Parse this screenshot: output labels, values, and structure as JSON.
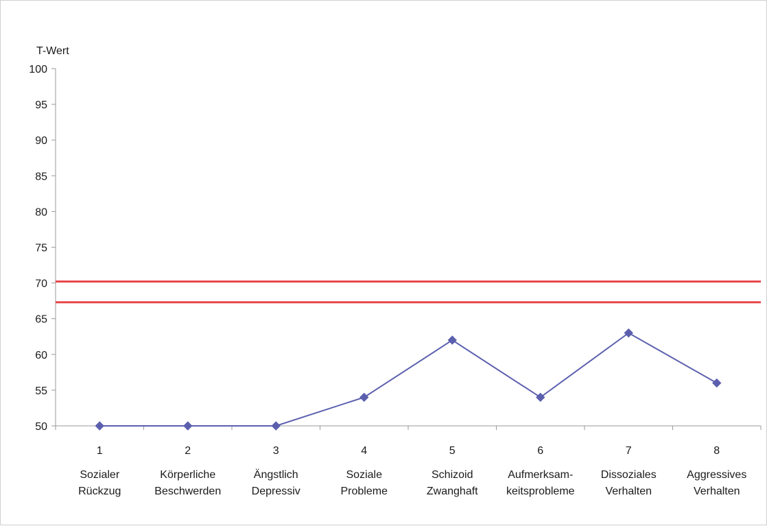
{
  "chart_data": {
    "type": "line",
    "title": "",
    "ylabel": "T-Wert",
    "xlabel": "",
    "ylim": [
      50,
      100
    ],
    "y_ticks": [
      "50",
      "55",
      "60",
      "65",
      "70",
      "75",
      "80",
      "85",
      "90",
      "95",
      "100"
    ],
    "categories": [
      "1",
      "2",
      "3",
      "4",
      "5",
      "6",
      "7",
      "8"
    ],
    "category_labels": [
      [
        "Sozialer",
        "Rückzug"
      ],
      [
        "Körperliche",
        "Beschwerden"
      ],
      [
        "Ängstlich",
        "Depressiv"
      ],
      [
        "Soziale",
        "Probleme"
      ],
      [
        "Schizoid",
        "Zwanghaft"
      ],
      [
        "Aufmerksam-",
        "keitsprobleme"
      ],
      [
        "Dissoziales",
        "Verhalten"
      ],
      [
        "Aggressives",
        "Verhalten"
      ]
    ],
    "series": [
      {
        "values": [
          50,
          50,
          50,
          54,
          62,
          54,
          63,
          56
        ],
        "color": "#5b5fae",
        "marker": "diamond"
      }
    ],
    "reference_lines": [
      {
        "y": 70.2,
        "color": "#e8474a"
      },
      {
        "y": 67.3,
        "color": "#e8474a"
      }
    ],
    "grid": false,
    "legend": "none"
  }
}
